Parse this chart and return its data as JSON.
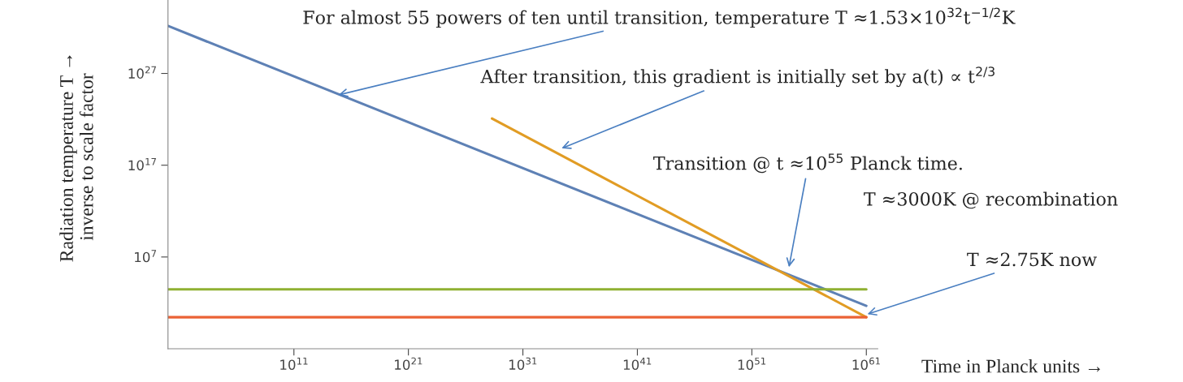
{
  "chart_data": {
    "type": "line",
    "xlabel": "Time in Planck units →",
    "ylabel": "Radiation temperature T →\ninverse to scale factor",
    "log": "xy",
    "grid": false,
    "legend": false,
    "marker": "none",
    "line_style": "solid",
    "xlim": [
      1,
      1e+62
    ],
    "ylim": [
      0.001,
      1e+35
    ],
    "xticks": [
      {
        "value": 100000000000.0,
        "label": "10$^{11}$"
      },
      {
        "value": 1e+21,
        "label": "10$^{21}$"
      },
      {
        "value": 1e+31,
        "label": "10$^{31}$"
      },
      {
        "value": 1e+41,
        "label": "10$^{41}$"
      },
      {
        "value": 1e+51,
        "label": "10$^{51}$"
      },
      {
        "value": 1e+61,
        "label": "10$^{61}$"
      }
    ],
    "yticks": [
      {
        "value": 10000000.0,
        "label": "10$^{7}$"
      },
      {
        "value": 1e+17,
        "label": "10$^{17}$"
      },
      {
        "value": 1e+27,
        "label": "10$^{27}$"
      }
    ],
    "series": [
      {
        "color": "#5e81b5",
        "x": [
          1,
          1e+61
        ],
        "values": [
          1.5e+32,
          48
        ]
      },
      {
        "color": "#e19c24",
        "x": [
          2e+28,
          1e+61
        ],
        "values": [
          1.2e+22,
          2.75
        ]
      },
      {
        "color": "#8fb032",
        "x": [
          1,
          1e+61
        ],
        "values": [
          3000,
          3000
        ]
      },
      {
        "color": "#eb6235",
        "x": [
          1,
          1e+61
        ],
        "values": [
          2.75,
          2.75
        ]
      }
    ],
    "annotations": [
      {
        "text": "For almost 55 powers of ten until transition, temperature T ≈1.53×10$^{32}$t$^{−1/2}$K",
        "x": 500000000000000.0,
        "y": 4e+24
      },
      {
        "text": "After transition, this gradient is initially set by a(t) ∝ t$^{2/3}$",
        "x": 1.6e+34,
        "y": 5.6e+18
      },
      {
        "text": "Transition @ t ≈10$^{55}$ Planck time.",
        "x": 1.6e+54,
        "y": 450000.0
      },
      "T ≈3000K @ recombination",
      {
        "text": "T ≈2.75K now",
        "x": 8e+60,
        "y": 5
      }
    ]
  }
}
